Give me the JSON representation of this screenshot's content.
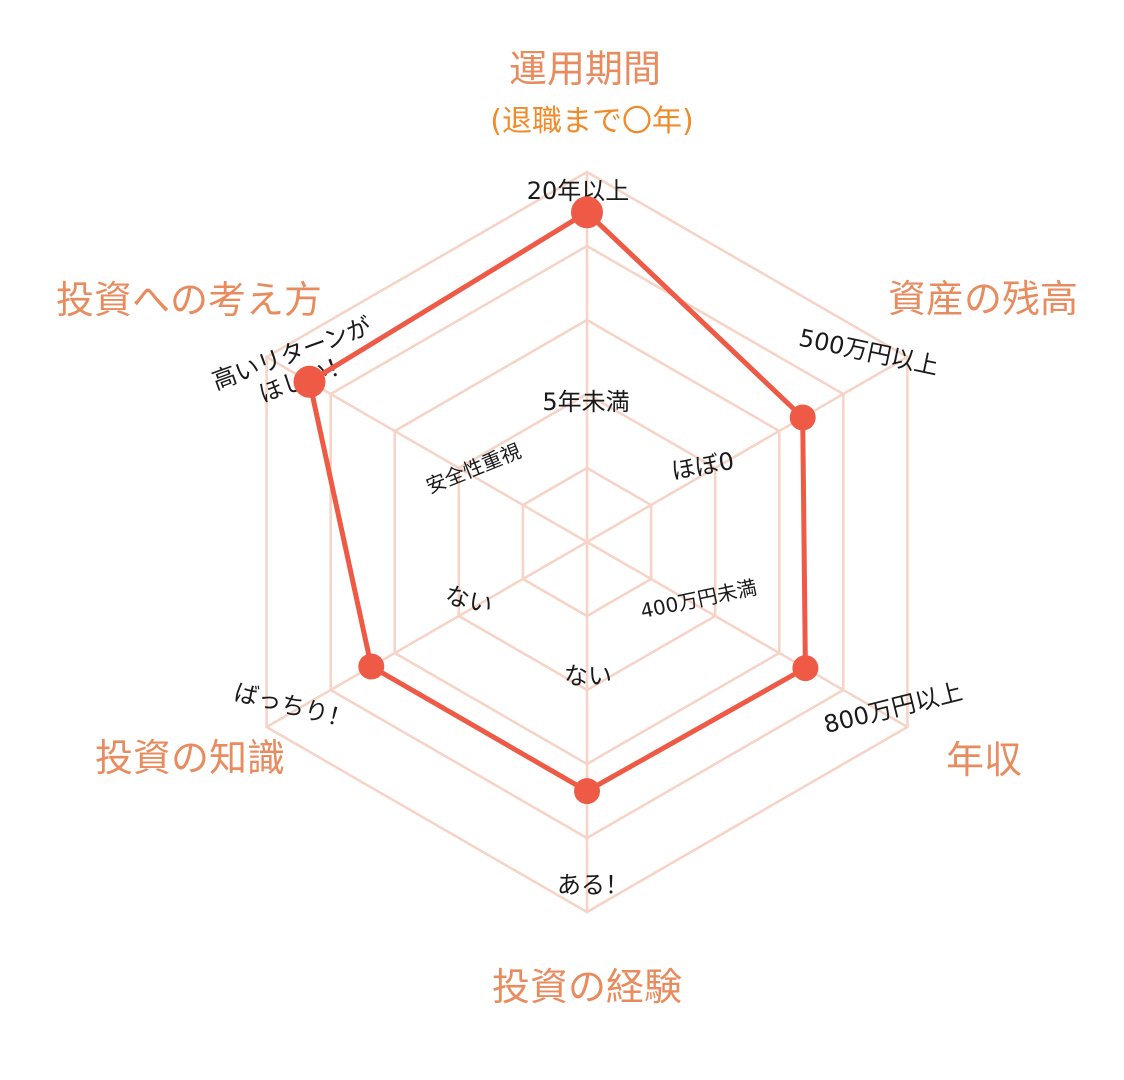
{
  "chart_data": {
    "type": "radar",
    "title": "",
    "levels": 5,
    "range": [
      0,
      1
    ],
    "axes": [
      {
        "name": "運用期間",
        "subtitle": "(退職まで〇年)",
        "min_label": "5年未満",
        "max_label": "20年以上"
      },
      {
        "name": "資産の残高",
        "min_label": "ほぼ0",
        "max_label": "500万円以上"
      },
      {
        "name": "年収",
        "min_label": "400万円未満",
        "max_label": "800万円以上"
      },
      {
        "name": "投資の経験",
        "min_label": "ない",
        "max_label": "ある！"
      },
      {
        "name": "投資の知識",
        "min_label": "ない",
        "max_label": "ばっちり！"
      },
      {
        "name": "投資への考え方",
        "min_label": "安全性重視",
        "max_label": "高いリターンがほしい！"
      }
    ],
    "values": [
      0.87,
      0.61,
      0.62,
      0.61,
      0.61,
      0.84
    ],
    "colors": {
      "grid": "#f6d3c6",
      "series": "#ee5a45",
      "axis_title": "#e88c5f",
      "subtitle": "#ef8b2a"
    }
  }
}
